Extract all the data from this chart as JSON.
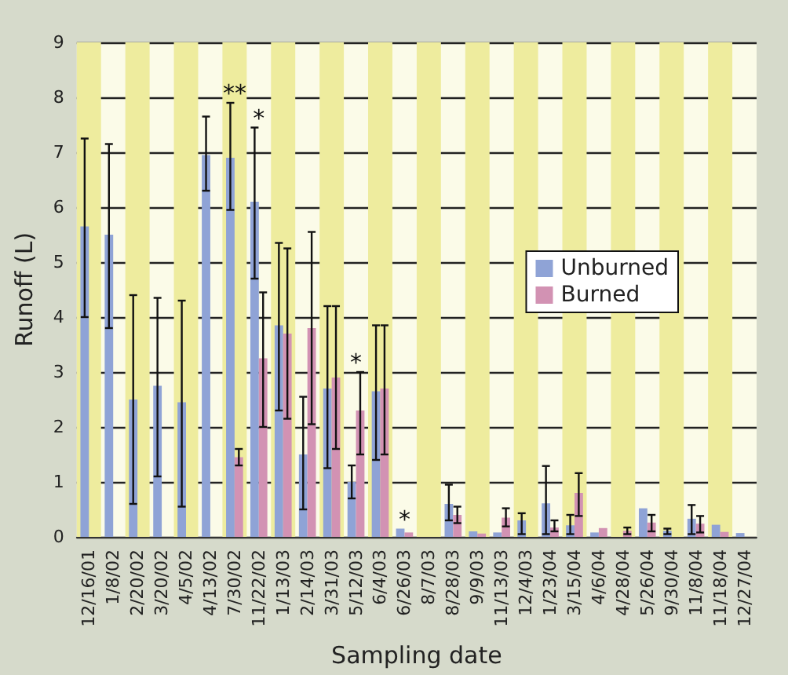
{
  "chart_data": {
    "type": "bar",
    "xlabel": "Sampling date",
    "ylabel": "Runoff (L)",
    "categories": [
      "12/16/01",
      "1/8/02",
      "2/20/02",
      "3/20/02",
      "4/5/02",
      "4/13/02",
      "7/30/02",
      "11/22/02",
      "1/13/03",
      "2/14/03",
      "3/31/03",
      "5/12/03",
      "6/4/03",
      "6/26/03",
      "8/7/03",
      "8/28/03",
      "9/9/03",
      "11/13/03",
      "12/4/03",
      "1/23/04",
      "3/15/04",
      "4/6/04",
      "4/28/04",
      "5/26/04",
      "9/30/04",
      "11/8/04",
      "11/18/04",
      "12/27/04"
    ],
    "series": [
      {
        "name": "Unburned",
        "color": "#8fa3d6",
        "values": [
          5.65,
          5.5,
          2.5,
          2.75,
          2.45,
          6.95,
          6.9,
          6.1,
          3.85,
          1.5,
          2.7,
          1.0,
          2.65,
          0.15,
          null,
          0.6,
          0.1,
          0.08,
          0.3,
          0.61,
          0.21,
          0.08,
          null,
          0.52,
          0.11,
          0.33,
          0.22,
          0.07
        ],
        "errors": [
          [
            4.0,
            7.25
          ],
          [
            3.8,
            7.15
          ],
          [
            0.6,
            4.4
          ],
          [
            1.1,
            4.35
          ],
          [
            0.55,
            4.3
          ],
          [
            6.3,
            7.65
          ],
          [
            5.95,
            7.9
          ],
          [
            4.7,
            7.45
          ],
          [
            2.3,
            5.35
          ],
          [
            0.5,
            2.55
          ],
          [
            1.25,
            4.2
          ],
          [
            0.7,
            1.3
          ],
          [
            1.4,
            3.85
          ],
          null,
          null,
          [
            0.3,
            0.95
          ],
          null,
          null,
          [
            0.05,
            0.43
          ],
          [
            0.05,
            1.29
          ],
          [
            0.05,
            0.4
          ],
          null,
          null,
          null,
          [
            0.05,
            0.15
          ],
          [
            0.05,
            0.58
          ],
          null,
          null
        ]
      },
      {
        "name": "Burned",
        "color": "#d292b3",
        "values": [
          null,
          null,
          null,
          null,
          null,
          null,
          1.45,
          3.25,
          3.7,
          3.8,
          2.9,
          2.3,
          2.7,
          0.08,
          null,
          0.4,
          0.06,
          0.35,
          null,
          0.17,
          0.8,
          0.16,
          0.11,
          0.26,
          null,
          0.24,
          0.09,
          null
        ],
        "errors": [
          null,
          null,
          null,
          null,
          null,
          null,
          [
            1.3,
            1.6
          ],
          [
            2.0,
            4.45
          ],
          [
            2.15,
            5.25
          ],
          [
            2.05,
            5.55
          ],
          [
            1.6,
            4.2
          ],
          [
            1.5,
            3.0
          ],
          [
            1.5,
            3.85
          ],
          null,
          null,
          [
            0.25,
            0.55
          ],
          null,
          [
            0.19,
            0.52
          ],
          null,
          [
            0.1,
            0.3
          ],
          [
            0.38,
            1.16
          ],
          null,
          [
            0.05,
            0.17
          ],
          [
            0.1,
            0.4
          ],
          null,
          [
            0.08,
            0.38
          ],
          null,
          null
        ]
      }
    ],
    "bands": [
      {
        "axis": "x",
        "from": "12/16/01",
        "to": "12/16/01",
        "color": "#eeec9e"
      },
      {
        "axis": "x",
        "from": "2/20/02",
        "to": "2/20/02",
        "color": "#eeec9e"
      },
      {
        "axis": "x",
        "from": "4/5/02",
        "to": "4/5/02",
        "color": "#eeec9e"
      },
      {
        "axis": "x",
        "from": "7/30/02",
        "to": "7/30/02",
        "color": "#eeec9e"
      },
      {
        "axis": "x",
        "from": "1/13/03",
        "to": "1/13/03",
        "color": "#eeec9e"
      },
      {
        "axis": "x",
        "from": "3/31/03",
        "to": "3/31/03",
        "color": "#eeec9e"
      },
      {
        "axis": "x",
        "from": "6/4/03",
        "to": "6/4/03",
        "color": "#eeec9e"
      },
      {
        "axis": "x",
        "from": "8/7/03",
        "to": "8/7/03",
        "color": "#eeec9e"
      },
      {
        "axis": "x",
        "from": "9/9/03",
        "to": "9/9/03",
        "color": "#eeec9e"
      },
      {
        "axis": "x",
        "from": "12/4/03",
        "to": "12/4/03",
        "color": "#eeec9e"
      },
      {
        "axis": "x",
        "from": "3/15/04",
        "to": "3/15/04",
        "color": "#eeec9e"
      },
      {
        "axis": "x",
        "from": "4/28/04",
        "to": "4/28/04",
        "color": "#eeec9e"
      },
      {
        "axis": "x",
        "from": "9/30/04",
        "to": "9/30/04",
        "color": "#eeec9e"
      },
      {
        "axis": "x",
        "from": "11/18/04",
        "to": "11/18/04",
        "color": "#eeec9e"
      }
    ],
    "ylim": [
      0,
      9
    ],
    "yticks": [
      0,
      1,
      2,
      3,
      4,
      5,
      6,
      7,
      8,
      9
    ],
    "grid": "y",
    "legend": "right",
    "annotations": [
      {
        "text": "**",
        "x": "7/30/02",
        "y": 6.9
      },
      {
        "text": "*",
        "x": "11/22/02",
        "y": 6.1
      },
      {
        "text": "*",
        "x": "5/12/03",
        "y": 2.3
      },
      {
        "text": "*",
        "x": "6/26/03",
        "y": 0.15
      }
    ]
  }
}
